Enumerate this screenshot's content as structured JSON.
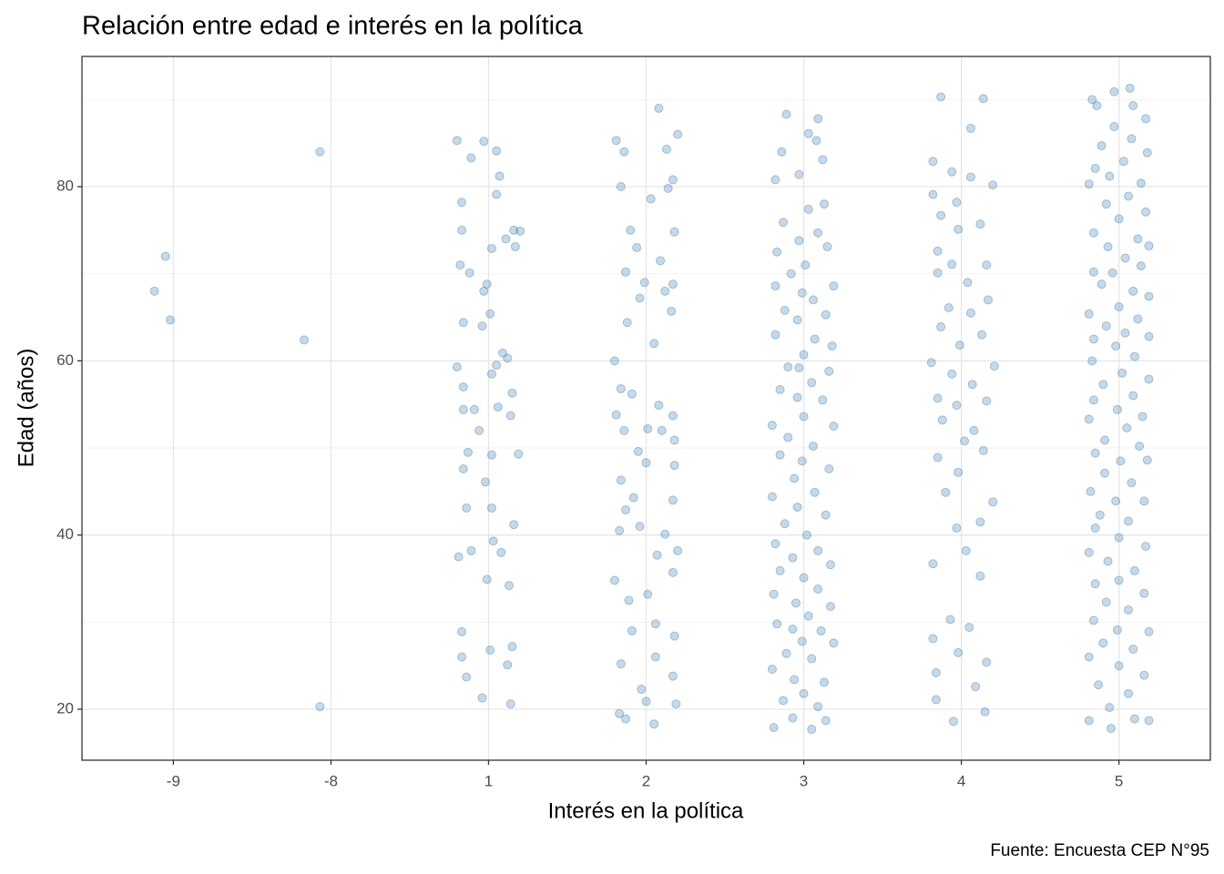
{
  "chart_data": {
    "type": "scatter",
    "title": "Relación entre edad e interés en la política",
    "xlabel": "Interés en la política",
    "ylabel": "Edad (años)",
    "caption": "Fuente: Encuesta CEP N°95",
    "color": "#4682b4",
    "grid": true,
    "xlim": [
      0.42,
      7.58
    ],
    "ylim": [
      14.15,
      94.95
    ],
    "xticks": [
      {
        "value": 1,
        "label": "-9"
      },
      {
        "value": 2,
        "label": "-8"
      },
      {
        "value": 3,
        "label": "1"
      },
      {
        "value": 4,
        "label": "2"
      },
      {
        "value": 5,
        "label": "3"
      },
      {
        "value": 6,
        "label": "4"
      },
      {
        "value": 7,
        "label": "5"
      }
    ],
    "yticks": [
      20,
      40,
      60,
      80
    ],
    "y_minor_ticks": [
      30,
      50,
      70,
      90
    ],
    "x": [
      0.95,
      0.88,
      0.98,
      1.93,
      1.83,
      1.93,
      2.8,
      2.97,
      2.89,
      3.05,
      3.07,
      3.05,
      2.83,
      2.83,
      3.16,
      3.2,
      3.11,
      3.02,
      3.17,
      2.82,
      2.88,
      2.99,
      2.97,
      3.01,
      2.84,
      2.96,
      3.09,
      3.12,
      2.8,
      3.02,
      3.05,
      2.84,
      3.15,
      2.84,
      2.91,
      3.06,
      3.14,
      2.94,
      2.87,
      3.02,
      3.19,
      2.84,
      2.98,
      2.86,
      3.02,
      3.16,
      3.03,
      2.81,
      2.89,
      3.08,
      2.99,
      3.13,
      2.83,
      3.01,
      2.83,
      3.12,
      2.86,
      2.96,
      3.14,
      3.15,
      3.81,
      4.08,
      4.2,
      3.86,
      4.13,
      3.84,
      4.17,
      4.03,
      4.14,
      3.9,
      4.18,
      3.94,
      4.09,
      3.87,
      3.99,
      3.96,
      4.12,
      4.17,
      4.16,
      3.88,
      4.05,
      3.8,
      3.84,
      3.91,
      4.08,
      4.17,
      3.81,
      3.86,
      4.01,
      4.1,
      4.18,
      3.95,
      4.0,
      4.18,
      3.84,
      3.92,
      4.17,
      3.87,
      3.83,
      3.96,
      4.12,
      4.07,
      4.2,
      3.8,
      4.17,
      4.01,
      3.89,
      3.91,
      4.06,
      4.18,
      4.06,
      3.84,
      4.17,
      3.97,
      4.0,
      3.83,
      3.87,
      4.05,
      4.19,
      4.89,
      5.09,
      5.03,
      4.86,
      5.08,
      5.12,
      4.82,
      4.97,
      5.13,
      5.03,
      4.87,
      5.09,
      4.97,
      4.83,
      5.15,
      5.01,
      4.92,
      4.82,
      5.19,
      4.99,
      5.06,
      4.88,
      5.14,
      4.96,
      4.82,
      5.07,
      5.18,
      5.0,
      4.9,
      4.97,
      5.16,
      5.05,
      4.85,
      4.96,
      5.12,
      4.8,
      5.0,
      5.19,
      4.9,
      5.06,
      4.85,
      4.99,
      5.16,
      4.94,
      4.8,
      5.07,
      4.96,
      5.14,
      4.88,
      5.02,
      4.82,
      5.09,
      4.93,
      5.17,
      4.85,
      5.0,
      5.09,
      4.81,
      4.95,
      5.17,
      5.03,
      4.83,
      4.93,
      5.11,
      4.99,
      5.19,
      4.89,
      5.05,
      4.8,
      4.94,
      5.13,
      5.0,
      4.87,
      5.09,
      4.93,
      5.14,
      4.81,
      5.05,
      5.87,
      6.14,
      6.06,
      5.82,
      5.94,
      6.06,
      6.2,
      5.82,
      5.97,
      5.87,
      6.12,
      5.98,
      5.85,
      5.94,
      6.16,
      5.85,
      6.04,
      6.17,
      5.92,
      6.06,
      5.87,
      6.13,
      5.99,
      5.81,
      6.21,
      5.94,
      6.07,
      5.85,
      5.97,
      6.16,
      5.88,
      6.08,
      6.02,
      5.85,
      6.14,
      5.98,
      5.9,
      6.2,
      5.97,
      6.12,
      6.03,
      5.82,
      6.12,
      5.93,
      6.05,
      5.82,
      5.98,
      6.16,
      5.84,
      6.09,
      5.84,
      5.95,
      6.15,
      6.83,
      6.97,
      7.07,
      7.09,
      6.86,
      7.17,
      6.97,
      7.08,
      6.89,
      7.18,
      7.03,
      6.85,
      6.94,
      7.14,
      6.81,
      7.06,
      6.92,
      7.17,
      7.0,
      6.84,
      7.12,
      6.93,
      7.19,
      7.04,
      6.84,
      6.96,
      7.14,
      6.89,
      7.09,
      7.19,
      7.0,
      6.81,
      7.12,
      6.92,
      7.04,
      6.84,
      7.19,
      6.98,
      7.1,
      6.83,
      7.02,
      7.19,
      6.9,
      7.09,
      6.84,
      6.99,
      7.15,
      6.81,
      7.05,
      6.91,
      7.13,
      6.85,
      7.01,
      7.18,
      6.91,
      7.08,
      6.82,
      6.98,
      7.16,
      6.88,
      7.06,
      6.85,
      7.0,
      7.17,
      6.81,
      6.93,
      7.1,
      6.85,
      7.0,
      7.16,
      6.92,
      7.06,
      6.84,
      6.99,
      7.19,
      6.9,
      7.09,
      6.81,
      7.0,
      7.16,
      6.87,
      7.06,
      6.94,
      6.81,
      7.1,
      7.19,
      6.95
    ],
    "values": [
      72,
      68,
      64.7,
      84,
      62.4,
      20.3,
      85.3,
      85.2,
      83.3,
      84.1,
      81.2,
      79.1,
      78.2,
      75,
      75,
      74.9,
      74,
      72.9,
      73.1,
      71,
      70.1,
      68.8,
      68,
      65.4,
      64.4,
      64,
      60.9,
      60.3,
      59.3,
      58.5,
      59.5,
      57,
      56.3,
      54.4,
      54.4,
      54.7,
      53.7,
      52,
      49.5,
      49.2,
      49.3,
      47.6,
      46.1,
      43.1,
      43.1,
      41.2,
      39.3,
      37.5,
      38.2,
      38,
      34.9,
      34.2,
      28.9,
      26.8,
      26,
      25.1,
      23.7,
      21.3,
      20.6,
      27.2,
      85.3,
      89,
      86,
      84,
      84.3,
      80,
      80.8,
      78.6,
      79.8,
      75,
      74.8,
      73,
      71.5,
      70.2,
      69,
      67.2,
      68,
      68.8,
      65.7,
      64.4,
      62,
      60,
      56.8,
      56.2,
      54.9,
      53.7,
      53.8,
      52,
      52.2,
      52,
      50.9,
      49.6,
      48.3,
      48,
      46.3,
      44.3,
      44,
      42.9,
      40.5,
      41,
      40.1,
      37.7,
      38.2,
      34.8,
      35.7,
      33.2,
      32.5,
      29,
      29.8,
      28.4,
      26,
      25.2,
      23.8,
      22.3,
      20.9,
      19.5,
      18.9,
      18.3,
      20.6,
      88.3,
      87.8,
      86.1,
      84,
      85.3,
      83.1,
      80.8,
      81.4,
      78,
      77.4,
      75.9,
      74.7,
      73.8,
      72.5,
      73.1,
      71,
      70,
      68.6,
      68.6,
      67.8,
      67,
      65.8,
      65.3,
      64.7,
      63,
      62.5,
      61.7,
      60.7,
      59.3,
      59.2,
      58.8,
      57.5,
      56.7,
      55.8,
      55.5,
      52.6,
      53.6,
      52.5,
      51.2,
      50.2,
      49.2,
      48.5,
      47.6,
      46.5,
      44.4,
      44.9,
      43.2,
      42.3,
      41.3,
      40,
      39,
      38.2,
      37.4,
      36.6,
      35.9,
      35.1,
      33.8,
      33.2,
      32.2,
      31.8,
      30.7,
      29.8,
      29.2,
      29,
      27.8,
      27.6,
      26.4,
      25.8,
      24.6,
      23.4,
      23.1,
      21.8,
      21,
      20.3,
      19,
      18.7,
      17.9,
      17.7,
      90.3,
      90.1,
      86.7,
      82.9,
      81.7,
      81.1,
      80.2,
      79.1,
      78.2,
      76.7,
      75.7,
      75.1,
      72.6,
      71.1,
      71,
      70.1,
      69,
      67,
      66.1,
      65.5,
      63.9,
      63,
      61.8,
      59.8,
      59.4,
      58.5,
      57.3,
      55.7,
      54.9,
      55.4,
      53.2,
      52,
      50.8,
      48.9,
      49.7,
      47.2,
      44.9,
      43.8,
      40.8,
      41.5,
      38.2,
      36.7,
      35.3,
      30.3,
      29.4,
      28.1,
      26.5,
      25.4,
      24.2,
      22.6,
      21.1,
      18.6,
      19.7,
      90,
      90.9,
      91.3,
      89.3,
      89.3,
      87.8,
      86.9,
      85.5,
      84.7,
      83.9,
      82.9,
      82.1,
      81.2,
      80.4,
      80.3,
      78.9,
      78,
      77.1,
      76.3,
      74.7,
      74,
      73.1,
      73.2,
      71.8,
      70.2,
      70.1,
      70.9,
      68.8,
      68,
      67.4,
      66.2,
      65.4,
      64.8,
      64,
      63.2,
      62.5,
      62.8,
      61.7,
      60.5,
      60,
      58.6,
      57.9,
      57.3,
      56,
      55.5,
      54.4,
      53.6,
      53.3,
      52.3,
      50.9,
      50.2,
      49.4,
      48.5,
      48.6,
      47.1,
      46,
      45,
      43.9,
      43.9,
      42.3,
      41.6,
      40.8,
      39.7,
      38.7,
      38,
      37,
      35.9,
      34.4,
      34.8,
      33.3,
      32.3,
      31.4,
      30.2,
      29.1,
      28.9,
      27.6,
      26.9,
      26,
      25,
      23.9,
      22.8,
      21.8,
      20.2,
      18.7,
      18.9,
      18.7,
      17.8
    ]
  }
}
